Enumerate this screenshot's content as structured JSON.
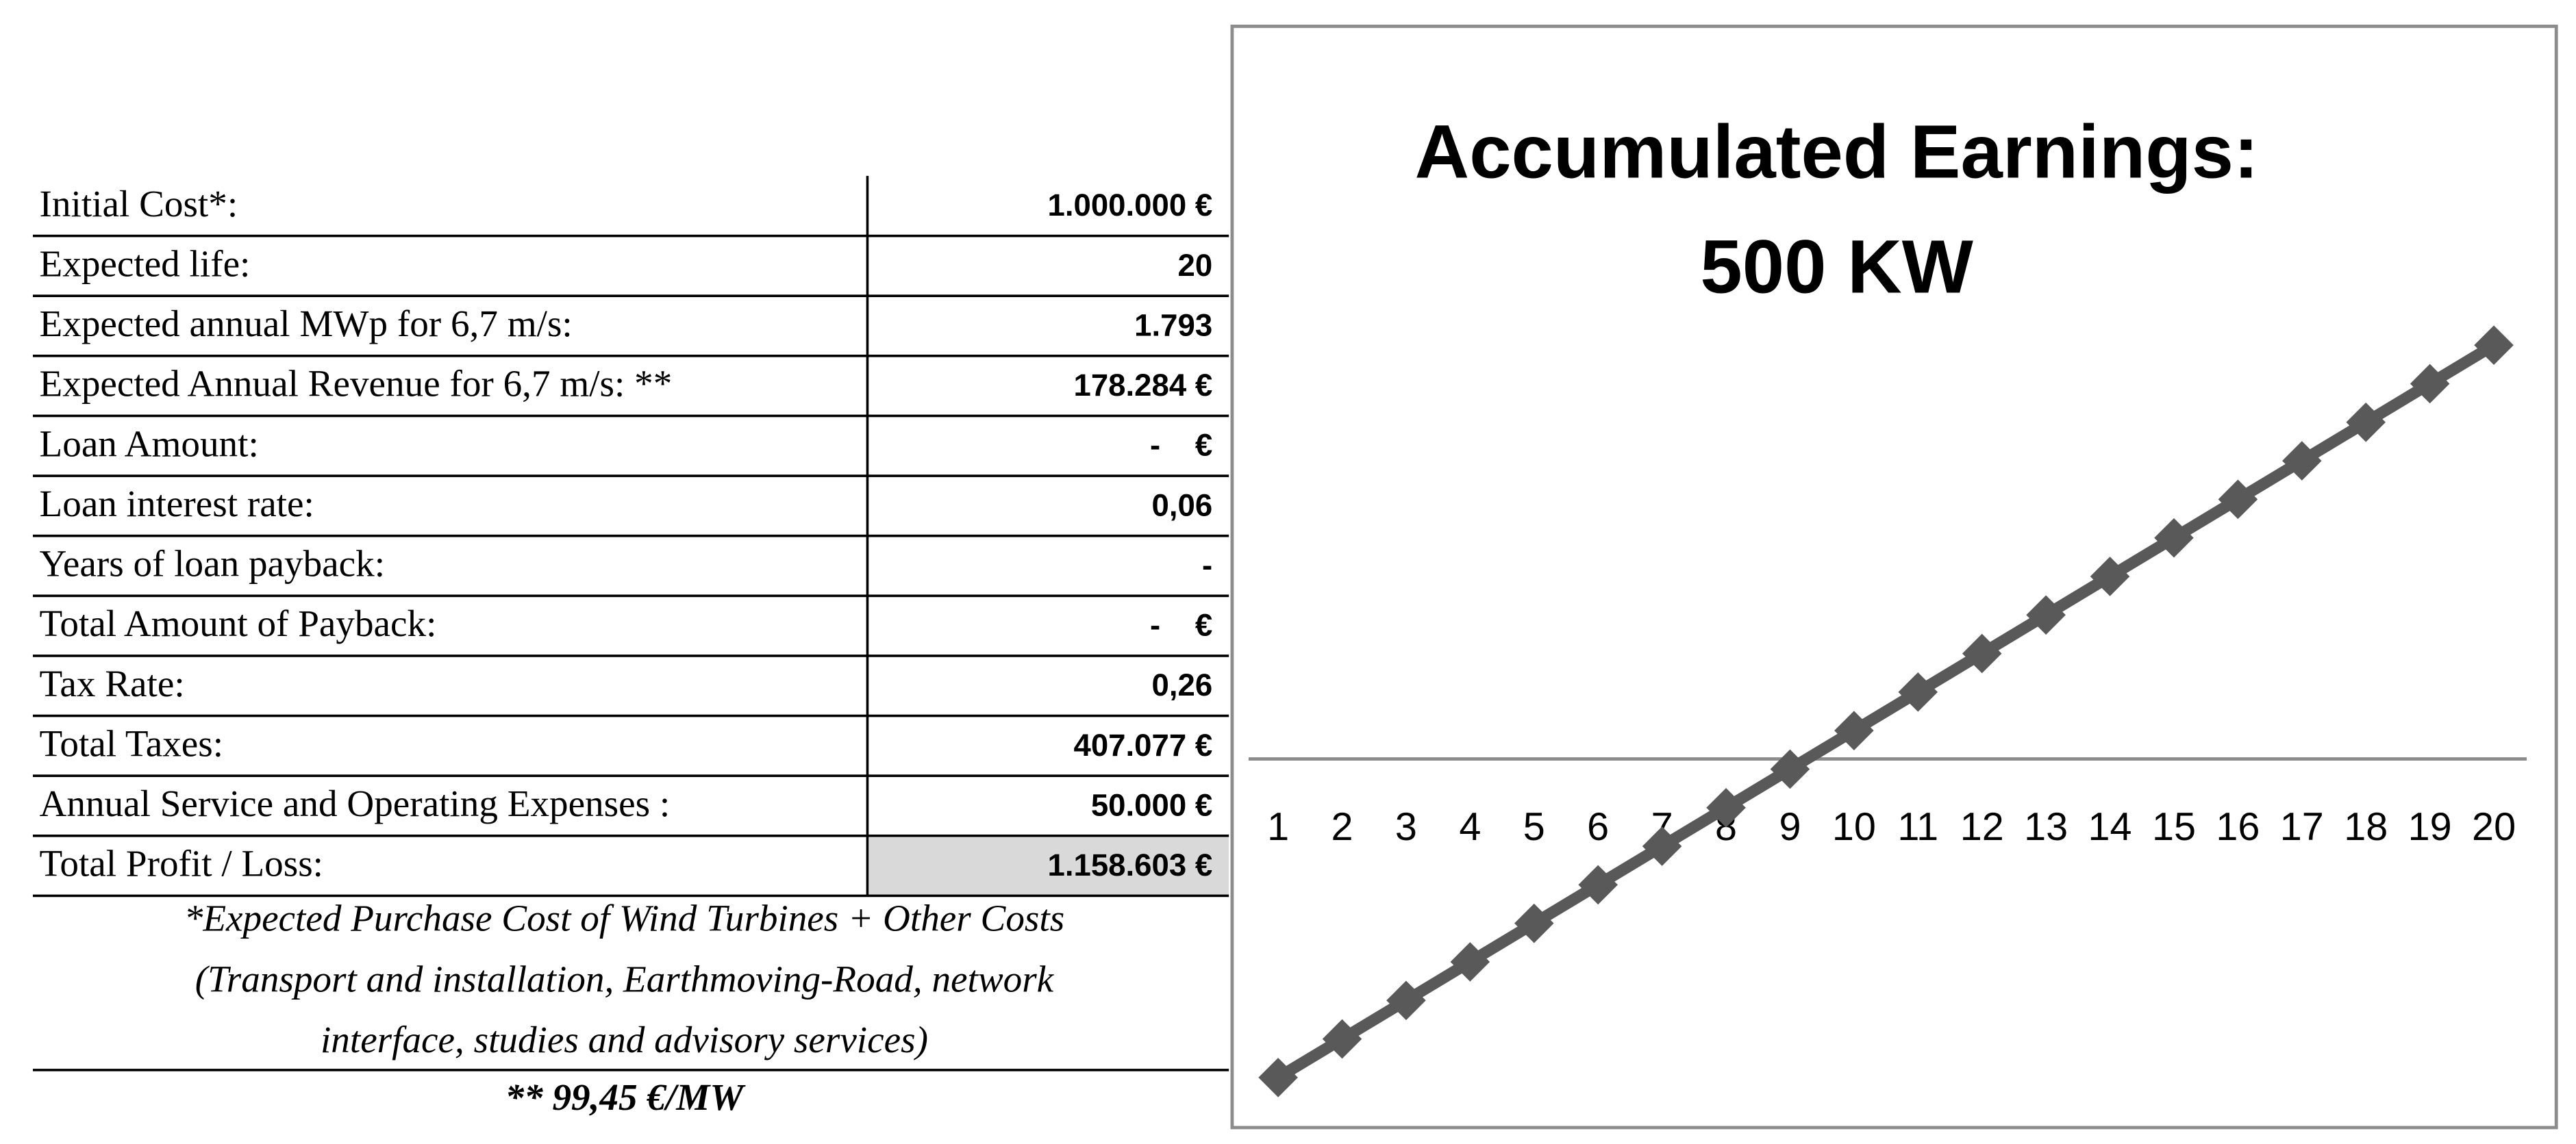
{
  "table": {
    "rows": [
      [
        "Initial Cost*:",
        "1.000.000 €"
      ],
      [
        "Expected life:",
        "20"
      ],
      [
        "Expected annual MWp for 6,7 m/s:",
        "1.793"
      ],
      [
        "Expected Annual Revenue for 6,7 m/s: **",
        "178.284 €"
      ],
      [
        "Loan Amount:",
        "-    €"
      ],
      [
        "Loan interest rate:",
        "0,06"
      ],
      [
        "Years of loan payback:",
        "-"
      ],
      [
        "Total Amount of Payback:",
        "-    €"
      ],
      [
        "Tax Rate:",
        "0,26"
      ],
      [
        "Total Taxes:",
        "407.077 €"
      ],
      [
        "Annual Service and Operating Expenses :",
        "50.000 €"
      ],
      [
        "Total Profit / Loss:",
        "1.158.603 €"
      ]
    ],
    "notes": [
      "*Expected Purchase Cost of  Wind Turbines + Other Costs",
      "(Transport and installation, Earthmoving-Road, network",
      "interface, studies and advisory services)"
    ],
    "footer": "** 99,45 €/MW"
  },
  "chart_data": {
    "type": "line",
    "title": "Accumulated Earnings:",
    "subtitle": "500 KW",
    "categories": [
      "1",
      "2",
      "3",
      "4",
      "5",
      "6",
      "7",
      "8",
      "9",
      "10",
      "11",
      "12",
      "13",
      "14",
      "15",
      "16",
      "17",
      "18",
      "19",
      "20"
    ],
    "series": [
      {
        "name": "Accumulated Earnings",
        "color": "#595959",
        "values": [
          -892070,
          -784140,
          -676210,
          -568280,
          -460350,
          -352420,
          -244490,
          -136560,
          -28630,
          79300,
          187230,
          295160,
          403090,
          511020,
          618950,
          726880,
          834810,
          942740,
          1050670,
          1158600
        ]
      }
    ],
    "ylim": [
      -1000000,
      1200000
    ]
  }
}
